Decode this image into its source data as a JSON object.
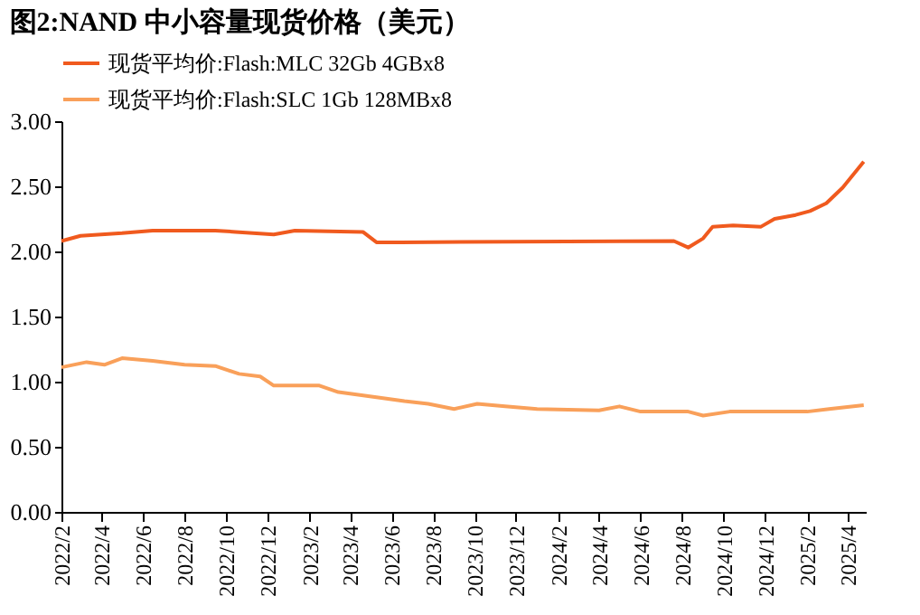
{
  "chart_data": {
    "type": "line",
    "title": "图2:NAND 中小容量现货价格（美元）",
    "series": [
      {
        "name": "现货平均价:Flash:MLC 32Gb 4GBx8",
        "color": "#f05a1e",
        "x": [
          "2022-02-01",
          "2022-03-01",
          "2022-05-01",
          "2022-06-15",
          "2022-09-15",
          "2022-10-15",
          "2022-12-10",
          "2023-01-10",
          "2023-04-20",
          "2023-05-10",
          "2023-06-15",
          "2024-07-20",
          "2024-08-10",
          "2024-09-01",
          "2024-09-15",
          "2024-10-15",
          "2024-11-25",
          "2024-12-15",
          "2025-01-15",
          "2025-02-05",
          "2025-03-01",
          "2025-03-25",
          "2025-04-25"
        ],
        "values": [
          2.08,
          2.12,
          2.14,
          2.16,
          2.16,
          2.15,
          2.13,
          2.16,
          2.15,
          2.07,
          2.07,
          2.08,
          2.03,
          2.1,
          2.19,
          2.2,
          2.19,
          2.25,
          2.28,
          2.31,
          2.37,
          2.49,
          2.69
        ]
      },
      {
        "name": "现货平均价:Flash:SLC 1Gb 128MBx8",
        "color": "#f9a05a",
        "x": [
          "2022-02-01",
          "2022-03-10",
          "2022-04-05",
          "2022-05-01",
          "2022-06-15",
          "2022-08-01",
          "2022-09-15",
          "2022-10-20",
          "2022-11-20",
          "2022-12-10",
          "2023-02-15",
          "2023-03-15",
          "2023-05-10",
          "2023-06-20",
          "2023-07-25",
          "2023-09-01",
          "2023-10-05",
          "2023-11-15",
          "2024-01-01",
          "2024-04-01",
          "2024-05-01",
          "2024-06-01",
          "2024-08-10",
          "2024-09-01",
          "2024-10-10",
          "2025-02-01",
          "2025-03-05",
          "2025-04-25"
        ],
        "values": [
          1.11,
          1.15,
          1.13,
          1.18,
          1.16,
          1.13,
          1.12,
          1.06,
          1.04,
          0.97,
          0.97,
          0.92,
          0.88,
          0.85,
          0.83,
          0.79,
          0.83,
          0.81,
          0.79,
          0.78,
          0.81,
          0.77,
          0.77,
          0.74,
          0.77,
          0.77,
          0.79,
          0.82
        ]
      }
    ],
    "xlim": [
      "2022-02-01",
      "2025-04-28"
    ],
    "xticks": [
      {
        "value": "2022-02",
        "label": "2022/2"
      },
      {
        "value": "2022-04",
        "label": "2022/4"
      },
      {
        "value": "2022-06",
        "label": "2022/6"
      },
      {
        "value": "2022-08",
        "label": "2022/8"
      },
      {
        "value": "2022-10",
        "label": "2022/10"
      },
      {
        "value": "2022-12",
        "label": "2022/12"
      },
      {
        "value": "2023-02",
        "label": "2023/2"
      },
      {
        "value": "2023-04",
        "label": "2023/4"
      },
      {
        "value": "2023-06",
        "label": "2023/6"
      },
      {
        "value": "2023-08",
        "label": "2023/8"
      },
      {
        "value": "2023-10",
        "label": "2023/10"
      },
      {
        "value": "2023-12",
        "label": "2023/12"
      },
      {
        "value": "2024-02",
        "label": "2024/2"
      },
      {
        "value": "2024-04",
        "label": "2024/4"
      },
      {
        "value": "2024-06",
        "label": "2024/6"
      },
      {
        "value": "2024-08",
        "label": "2024/8"
      },
      {
        "value": "2024-10",
        "label": "2024/10"
      },
      {
        "value": "2024-12",
        "label": "2024/12"
      },
      {
        "value": "2025-02",
        "label": "2025/2"
      },
      {
        "value": "2025-04",
        "label": "2025/4"
      }
    ],
    "ylim": [
      0,
      3
    ],
    "yticks": [
      {
        "value": 0,
        "label": "0.00"
      },
      {
        "value": 0.5,
        "label": "0.50"
      },
      {
        "value": 1,
        "label": "1.00"
      },
      {
        "value": 1.5,
        "label": "1.50"
      },
      {
        "value": 2,
        "label": "2.00"
      },
      {
        "value": 2.5,
        "label": "2.50"
      },
      {
        "value": 3,
        "label": "3.00"
      }
    ],
    "legend": "top",
    "grid": false,
    "marker": "none",
    "line_style": "solid"
  }
}
